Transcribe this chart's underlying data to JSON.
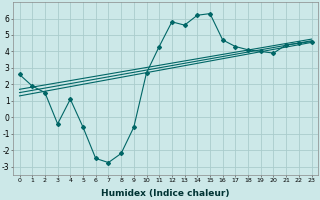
{
  "xlabel": "Humidex (Indice chaleur)",
  "xlim": [
    -0.5,
    23.5
  ],
  "ylim": [
    -3.5,
    7.0
  ],
  "yticks": [
    -3,
    -2,
    -1,
    0,
    1,
    2,
    3,
    4,
    5,
    6
  ],
  "xticks": [
    0,
    1,
    2,
    3,
    4,
    5,
    6,
    7,
    8,
    9,
    10,
    11,
    12,
    13,
    14,
    15,
    16,
    17,
    18,
    19,
    20,
    21,
    22,
    23
  ],
  "background_color": "#cce8e8",
  "grid_color": "#aacccc",
  "line_color": "#006666",
  "series": {
    "scatter_line": {
      "x": [
        0,
        1,
        2,
        3,
        4,
        5,
        6,
        7,
        8,
        9,
        10,
        11,
        12,
        13,
        14,
        15,
        16,
        17,
        18,
        19,
        20,
        21,
        22,
        23
      ],
      "y": [
        2.6,
        1.9,
        1.5,
        -0.4,
        1.1,
        -0.6,
        -2.5,
        -2.75,
        -2.2,
        -0.6,
        2.7,
        4.3,
        5.8,
        5.6,
        6.2,
        6.3,
        4.7,
        4.3,
        4.1,
        4.0,
        3.9,
        4.4,
        4.5,
        4.6
      ]
    },
    "line1": {
      "x": [
        0,
        23
      ],
      "y": [
        1.3,
        4.55
      ]
    },
    "line2": {
      "x": [
        0,
        23
      ],
      "y": [
        1.5,
        4.65
      ]
    },
    "line3": {
      "x": [
        0,
        23
      ],
      "y": [
        1.7,
        4.75
      ]
    }
  },
  "xtick_fontsize": 4.5,
  "ytick_fontsize": 5.5,
  "xlabel_fontsize": 6.5
}
